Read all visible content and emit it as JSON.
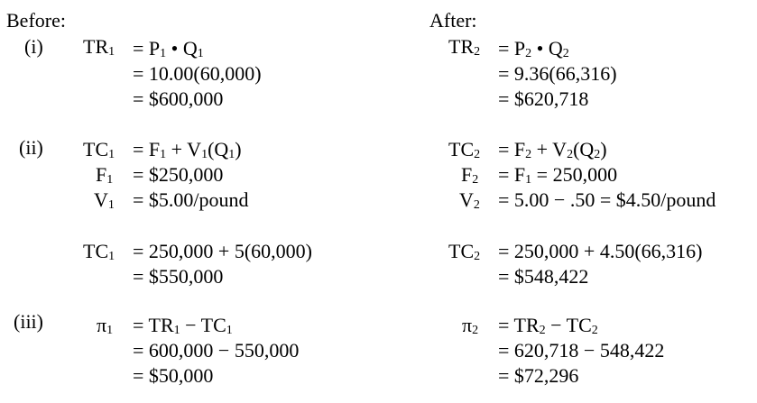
{
  "headers": {
    "before": "Before:",
    "after": "After:"
  },
  "steps": {
    "i": "(i)",
    "ii": "(ii)",
    "iii": "(iii)"
  },
  "before": {
    "tr": {
      "label_main": "TR",
      "label_sub": "1",
      "line1_a": "= P",
      "line1_a_sub": "1",
      "line1_b": " • Q",
      "line1_b_sub": "1",
      "line2": "= 10.00(60,000)",
      "line3": "= $600,000"
    },
    "tc_def": {
      "tc_label": "TC",
      "tc_sub": "1",
      "tc_eq_a": "= F",
      "tc_eq_a_sub": "1",
      "tc_eq_b": " + V",
      "tc_eq_b_sub": "1",
      "tc_eq_c": "(Q",
      "tc_eq_c_sub": "1",
      "tc_eq_d": ")",
      "f_label": "F",
      "f_sub": "1",
      "f_value": "= $250,000",
      "v_label": "V",
      "v_sub": "1",
      "v_value": "= $5.00/pound"
    },
    "tc_calc": {
      "label": "TC",
      "label_sub": "1",
      "line1": "= 250,000 + 5(60,000)",
      "line2": "= $550,000"
    },
    "profit": {
      "label": "π",
      "label_sub": "1",
      "line1_a": "= TR",
      "line1_a_sub": "1",
      "line1_b": " − TC",
      "line1_b_sub": "1",
      "line2": "= 600,000 − 550,000",
      "line3": "= $50,000"
    }
  },
  "after": {
    "tr": {
      "label_main": "TR",
      "label_sub": "2",
      "line1_a": "= P",
      "line1_a_sub": "2",
      "line1_b": " • Q",
      "line1_b_sub": "2",
      "line2": "= 9.36(66,316)",
      "line3": "= $620,718"
    },
    "tc_def": {
      "tc_label": "TC",
      "tc_sub": "2",
      "tc_eq_a": "= F",
      "tc_eq_a_sub": "2",
      "tc_eq_b": " + V",
      "tc_eq_b_sub": "2",
      "tc_eq_c": "(Q",
      "tc_eq_c_sub": "2",
      "tc_eq_d": ")",
      "f_label": "F",
      "f_sub": "2",
      "f_value_a": "= F",
      "f_value_a_sub": "1",
      "f_value_b": " = 250,000",
      "v_label": "V",
      "v_sub": "2",
      "v_value": "= 5.00 − .50 = $4.50/pound"
    },
    "tc_calc": {
      "label": "TC",
      "label_sub": "2",
      "line1": "= 250,000 + 4.50(66,316)",
      "line2": "= $548,422"
    },
    "profit": {
      "label": "π",
      "label_sub": "2",
      "line1_a": "= TR",
      "line1_a_sub": "2",
      "line1_b": " − TC",
      "line1_b_sub": "2",
      "line2": "= 620,718 − 548,422",
      "line3": "= $72,296"
    }
  }
}
